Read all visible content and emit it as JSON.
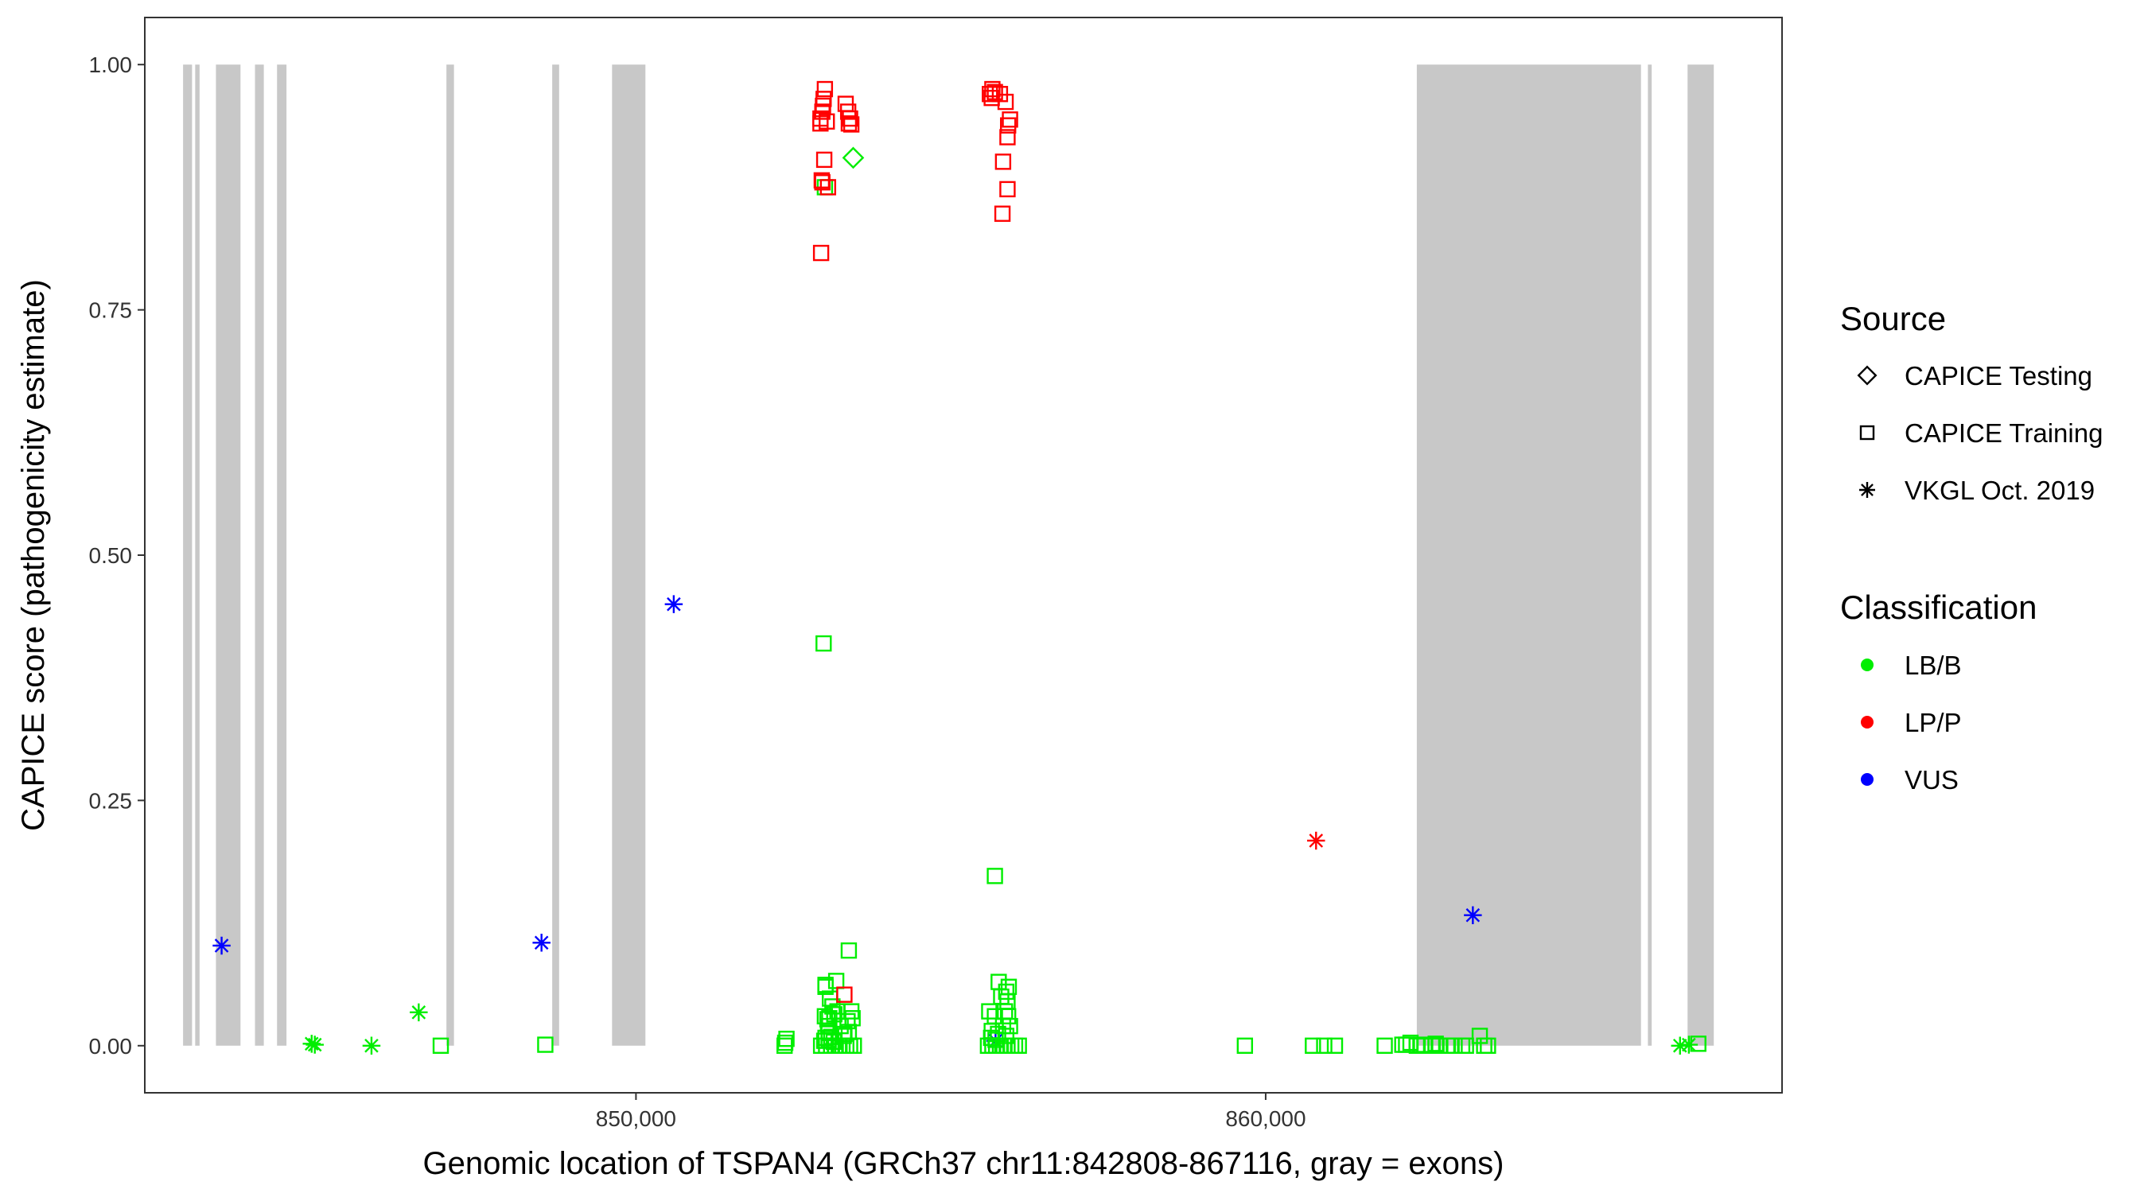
{
  "chart_data": {
    "type": "scatter",
    "title": "",
    "xlabel": "Genomic location of TSPAN4 (GRCh37 chr11:842808-867116, gray = exons)",
    "ylabel": "CAPICE score (pathogenicity estimate)",
    "xlim": [
      842200,
      868200
    ],
    "ylim": [
      -0.048,
      1.048
    ],
    "x_ticks": [
      850000,
      860000
    ],
    "x_tick_labels": [
      "850,000",
      "860,000"
    ],
    "y_ticks": [
      0,
      0.25,
      0.5,
      0.75,
      1.0
    ],
    "y_tick_labels": [
      "0.00",
      "0.25",
      "0.50",
      "0.75",
      "1.00"
    ],
    "grid": false,
    "exon_color": "#c8c8c8",
    "exons": [
      [
        842808,
        842950
      ],
      [
        843000,
        843070
      ],
      [
        843330,
        843720
      ],
      [
        843950,
        844090
      ],
      [
        844300,
        844450
      ],
      [
        846990,
        847110
      ],
      [
        848670,
        848780
      ],
      [
        849620,
        850150
      ],
      [
        862400,
        865960
      ],
      [
        866070,
        866130
      ],
      [
        866700,
        867116
      ]
    ],
    "legend": {
      "position": "right",
      "source_title": "Source",
      "source_entries": [
        {
          "label": "CAPICE Testing",
          "shape": "diamond"
        },
        {
          "label": "CAPICE Training",
          "shape": "square"
        },
        {
          "label": "VKGL Oct. 2019",
          "shape": "asterisk"
        }
      ],
      "class_title": "Classification",
      "class_entries": [
        {
          "label": "LB/B",
          "color": "#00ee00"
        },
        {
          "label": "LP/P",
          "color": "#ff0000"
        },
        {
          "label": "VUS",
          "color": "#0000ff"
        }
      ]
    },
    "series": [
      {
        "classification": "VUS",
        "source": "VKGL Oct. 2019",
        "x": [
          843420,
          848500,
          850600,
          863290,
          855710
        ],
        "y": [
          0.102,
          0.105,
          0.45,
          0.133,
          0.005
        ]
      },
      {
        "classification": "LP/P",
        "source": "VKGL Oct. 2019",
        "x": [
          860800
        ],
        "y": [
          0.209
        ]
      },
      {
        "classification": "LB/B",
        "source": "VKGL Oct. 2019",
        "x": [
          844850,
          844900,
          845800,
          846550,
          866580,
          866720
        ],
        "y": [
          0.002,
          0.001,
          0.0,
          0.034,
          0.0,
          0.001
        ]
      },
      {
        "classification": "LB/B",
        "source": "CAPICE Testing",
        "x": [
          853450
        ],
        "y": [
          0.905
        ]
      },
      {
        "classification": "LB/B",
        "source": "CAPICE Training",
        "x": [
          846900,
          848560,
          852360,
          852370,
          852390,
          852940,
          853020,
          853100,
          853160,
          853220,
          853280,
          853340,
          853400,
          853460,
          852990,
          853060,
          853140,
          853300,
          853380,
          853050,
          853040,
          853360,
          853000,
          853070,
          853150,
          853120,
          853200,
          853420,
          853440,
          853250,
          853010,
          853180,
          853010,
          853080,
          852980,
          853000,
          853380,
          853010,
          853310,
          853060,
          853100,
          855590,
          855660,
          855720,
          855780,
          855840,
          855900,
          855960,
          856020,
          856080,
          855610,
          855700,
          855650,
          855880,
          855940,
          855900,
          855920,
          855880,
          855830,
          855860,
          855760,
          855910,
          855800,
          855640,
          855750,
          855700,
          855710,
          859670,
          860750,
          860930,
          861100,
          861890,
          862170,
          862300,
          862400,
          862520,
          862640,
          862760,
          862880,
          863000,
          863120,
          862230,
          862470,
          862700,
          862940,
          863180,
          863400,
          863470,
          863530,
          866870
        ],
        "y": [
          0.0,
          0.001,
          0.0,
          0.003,
          0.007,
          0.0,
          0.0,
          0.0,
          0.0,
          0.0,
          0.0,
          0.0,
          0.0,
          0.0,
          0.005,
          0.006,
          0.004,
          0.01,
          0.014,
          0.02,
          0.027,
          0.025,
          0.03,
          0.028,
          0.032,
          0.04,
          0.035,
          0.035,
          0.028,
          0.02,
          0.06,
          0.066,
          0.062,
          0.048,
          0.41,
          0.875,
          0.097,
          0.008,
          0.012,
          0.013,
          0.009,
          0.0,
          0.0,
          0.0,
          0.0,
          0.0,
          0.0,
          0.0,
          0.0,
          0.0,
          0.035,
          0.03,
          0.015,
          0.01,
          0.02,
          0.045,
          0.06,
          0.055,
          0.02,
          0.035,
          0.065,
          0.03,
          0.05,
          0.008,
          0.012,
          0.173,
          0.006,
          0.0,
          0.0,
          0.0,
          0.0,
          0.0,
          0.001,
          0.003,
          0.0,
          0.0,
          0.0,
          0.0,
          0.0,
          0.0,
          0.0,
          0.001,
          0.001,
          0.002,
          0.0,
          0.0,
          0.01,
          0.0,
          0.0,
          0.002
        ]
      },
      {
        "classification": "LP/P",
        "source": "CAPICE Training",
        "x": [
          852930,
          852960,
          852980,
          853000,
          853030,
          852990,
          852950,
          852940,
          852970,
          852930,
          853050,
          852960,
          853330,
          853370,
          853400,
          853420,
          853380,
          853310,
          855620,
          855660,
          855700,
          855780,
          855650,
          855870,
          855940,
          855910,
          855900,
          855830,
          855820,
          855900
        ],
        "y": [
          0.945,
          0.952,
          0.965,
          0.975,
          0.942,
          0.903,
          0.882,
          0.808,
          0.958,
          0.94,
          0.875,
          0.88,
          0.96,
          0.952,
          0.945,
          0.939,
          0.94,
          0.052,
          0.97,
          0.975,
          0.972,
          0.97,
          0.966,
          0.962,
          0.944,
          0.938,
          0.926,
          0.901,
          0.848,
          0.873
        ]
      }
    ]
  }
}
